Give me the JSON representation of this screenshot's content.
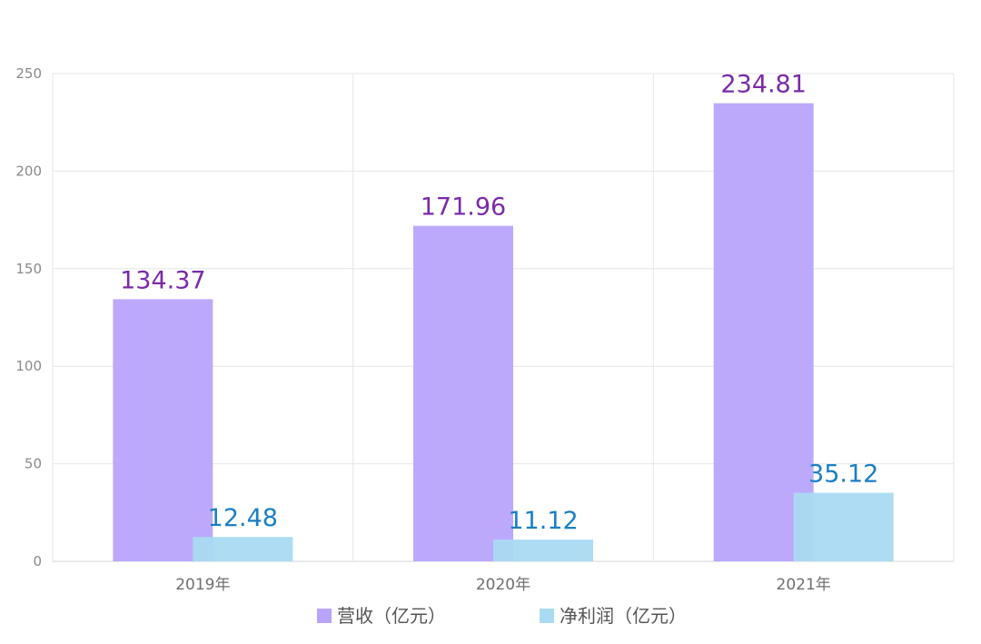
{
  "chart_data": {
    "type": "bar",
    "categories": [
      "2019年",
      "2020年",
      "2021年"
    ],
    "series": [
      {
        "name": "营收（亿元）",
        "values": [
          134.37,
          171.96,
          234.81
        ],
        "color": "#b9a4fc",
        "label_color": "#7a2aa8"
      },
      {
        "name": "净利润（亿元）",
        "values": [
          12.48,
          11.12,
          35.12
        ],
        "color": "#a9daf2",
        "label_color": "#1a7fc4"
      }
    ],
    "ylim": [
      0,
      250
    ],
    "yticks": [
      0,
      50,
      100,
      150,
      200,
      250
    ],
    "data_labels": [
      [
        "134.37",
        "171.96",
        "234.81"
      ],
      [
        "12.48",
        "11.12",
        "35.12"
      ]
    ],
    "grid": true,
    "legend_position": "bottom-center",
    "title": "",
    "xlabel": "",
    "ylabel": ""
  }
}
